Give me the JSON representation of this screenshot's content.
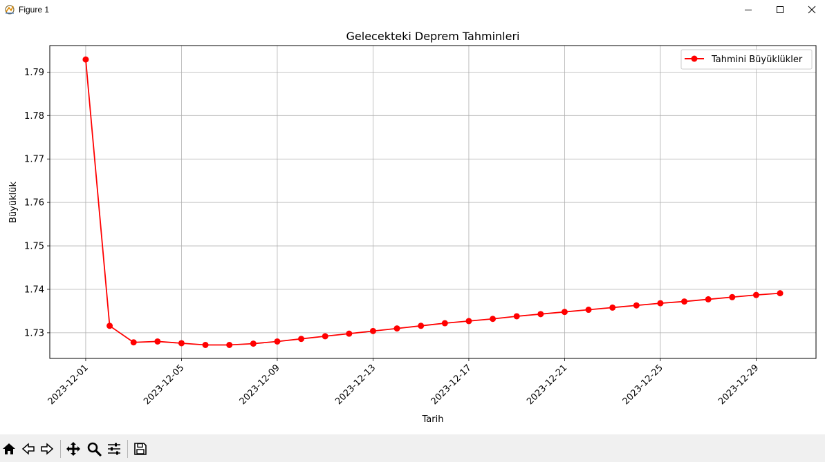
{
  "window": {
    "title": "Figure 1",
    "icons": [
      "figure-app-icon",
      "minimize-icon",
      "maximize-icon",
      "close-icon"
    ]
  },
  "toolbar": {
    "tools": [
      "home-icon",
      "back-icon",
      "forward-icon",
      "pan-icon",
      "zoom-icon",
      "configure-subplots-icon",
      "save-icon"
    ]
  },
  "chart_data": {
    "type": "line",
    "title": "Gelecekteki Deprem Tahminleri",
    "xlabel": "Tarih",
    "ylabel": "Büyüklük",
    "x": [
      "2023-12-01",
      "2023-12-02",
      "2023-12-03",
      "2023-12-04",
      "2023-12-05",
      "2023-12-06",
      "2023-12-07",
      "2023-12-08",
      "2023-12-09",
      "2023-12-10",
      "2023-12-11",
      "2023-12-12",
      "2023-12-13",
      "2023-12-14",
      "2023-12-15",
      "2023-12-16",
      "2023-12-17",
      "2023-12-18",
      "2023-12-19",
      "2023-12-20",
      "2023-12-21",
      "2023-12-22",
      "2023-12-23",
      "2023-12-24",
      "2023-12-25",
      "2023-12-26",
      "2023-12-27",
      "2023-12-28",
      "2023-12-29",
      "2023-12-30"
    ],
    "series": [
      {
        "name": "Tahmini Büyüklükler",
        "color": "#ff0000",
        "marker": "circle",
        "values": [
          1.7929,
          1.7316,
          1.7278,
          1.728,
          1.7276,
          1.7272,
          1.7272,
          1.7275,
          1.728,
          1.7286,
          1.7292,
          1.7298,
          1.7304,
          1.731,
          1.7316,
          1.7322,
          1.7327,
          1.7332,
          1.7338,
          1.7343,
          1.7348,
          1.7353,
          1.7358,
          1.7363,
          1.7368,
          1.7372,
          1.7377,
          1.7382,
          1.7387,
          1.7391
        ]
      }
    ],
    "xticks": [
      "2023-12-01",
      "2023-12-05",
      "2023-12-09",
      "2023-12-13",
      "2023-12-17",
      "2023-12-21",
      "2023-12-25",
      "2023-12-29"
    ],
    "xtick_rotation": 45,
    "yticks": [
      1.73,
      1.74,
      1.75,
      1.76,
      1.77,
      1.78,
      1.79
    ],
    "xlim": [
      "2023-11-29 12:00",
      "2023-12-31 12:00"
    ],
    "ylim": [
      1.7241,
      1.7961
    ],
    "grid": true,
    "legend": "top-right"
  }
}
